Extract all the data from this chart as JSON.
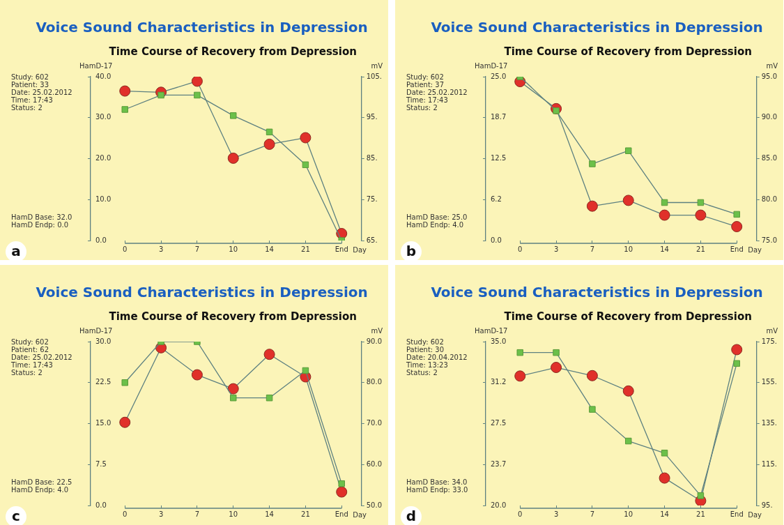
{
  "chart_data": [
    {
      "type": "line",
      "title": "Voice Sound Characteristics in Depression",
      "subtitle": "Time Course of Recovery from Depression",
      "xlabel": "Day",
      "ylabel": "HamD-17",
      "y2label": "mV",
      "categories": [
        "0",
        "3",
        "7",
        "10",
        "14",
        "21",
        "End"
      ],
      "series": [
        {
          "color": "#6cc04a",
          "marker": "square",
          "values": [
            32,
            35.5,
            35.5,
            30.5,
            26.5,
            18.5,
            0
          ]
        },
        {
          "color": "#e0302a",
          "marker": "circle",
          "axis": "y2",
          "values": [
            101.5,
            101.2,
            103.9,
            85.1,
            88.5,
            90.1,
            66.7
          ]
        }
      ],
      "ylim": [
        0,
        40
      ],
      "yticks": [
        {
          "value": 0,
          "label": "0.0"
        },
        {
          "value": 10,
          "label": "10.0"
        },
        {
          "value": 20,
          "label": "20.0"
        },
        {
          "value": 30,
          "label": "30.0"
        },
        {
          "value": 40,
          "label": "40.0"
        }
      ],
      "y2lim": [
        65,
        105
      ],
      "y2ticks": [
        {
          "value": 65,
          "label": "65."
        },
        {
          "value": 75,
          "label": "75."
        },
        {
          "value": 85,
          "label": "85."
        },
        {
          "value": 95,
          "label": "95."
        },
        {
          "value": 105,
          "label": "105."
        }
      ],
      "grid": false,
      "annotations": [
        "Study: 602",
        "Patient: 33",
        "Date: 25.02.2012",
        "Time: 17:43",
        "Status: 2",
        "HamD Base: 32.0",
        "HamD Endp: 0.0",
        "a"
      ]
    },
    {
      "type": "line",
      "title": "Voice Sound Characteristics in Depression",
      "subtitle": "Time Course of Recovery from Depression",
      "xlabel": "Day",
      "ylabel": "HamD-17",
      "y2label": "mV",
      "categories": [
        "0",
        "3",
        "7",
        "10",
        "14",
        "21",
        "End"
      ],
      "series": [
        {
          "color": "#6cc04a",
          "marker": "square",
          "values": [
            25,
            19.8,
            11.7,
            13.7,
            5.8,
            5.8,
            4.0
          ]
        },
        {
          "color": "#e0302a",
          "marker": "circle",
          "axis": "y2",
          "values": [
            94.4,
            91.1,
            79.2,
            79.9,
            78.1,
            78.1,
            76.7
          ]
        }
      ],
      "ylim": [
        0,
        25
      ],
      "yticks": [
        {
          "value": 0,
          "label": "0.0"
        },
        {
          "value": 6.25,
          "label": "6.2"
        },
        {
          "value": 12.5,
          "label": "12.5"
        },
        {
          "value": 18.75,
          "label": "18.7"
        },
        {
          "value": 25,
          "label": "25.0"
        }
      ],
      "y2lim": [
        75,
        95
      ],
      "y2ticks": [
        {
          "value": 75,
          "label": "75.0"
        },
        {
          "value": 80,
          "label": "80.0"
        },
        {
          "value": 85,
          "label": "85.0"
        },
        {
          "value": 90,
          "label": "90.0"
        },
        {
          "value": 95,
          "label": "95.0"
        }
      ],
      "grid": false,
      "annotations": [
        "Study: 602",
        "Patient: 37",
        "Date: 25.02.2012",
        "Time: 17:43",
        "Status: 2",
        "HamD Base: 25.0",
        "HamD Endp: 4.0",
        "b"
      ]
    },
    {
      "type": "line",
      "title": "Voice Sound Characteristics in Depression",
      "subtitle": "Time Course of Recovery from Depression",
      "xlabel": "Day",
      "ylabel": "HamD-17",
      "y2label": "mV",
      "categories": [
        "0",
        "3",
        "7",
        "10",
        "14",
        "21",
        "End"
      ],
      "series": [
        {
          "color": "#6cc04a",
          "marker": "square",
          "values": [
            22.5,
            30,
            30,
            19.7,
            19.7,
            24.7,
            4.0
          ]
        },
        {
          "color": "#e0302a",
          "marker": "circle",
          "axis": "y2",
          "values": [
            70.3,
            88.5,
            81.9,
            78.5,
            86.9,
            81.4,
            53.3
          ]
        }
      ],
      "ylim": [
        0,
        30
      ],
      "yticks": [
        {
          "value": 0,
          "label": "0.0"
        },
        {
          "value": 7.5,
          "label": "7.5"
        },
        {
          "value": 15,
          "label": "15.0"
        },
        {
          "value": 22.5,
          "label": "22.5"
        },
        {
          "value": 30,
          "label": "30.0"
        }
      ],
      "y2lim": [
        50,
        90
      ],
      "y2ticks": [
        {
          "value": 50,
          "label": "50.0"
        },
        {
          "value": 60,
          "label": "60.0"
        },
        {
          "value": 70,
          "label": "70.0"
        },
        {
          "value": 80,
          "label": "80.0"
        },
        {
          "value": 90,
          "label": "90.0"
        }
      ],
      "grid": false,
      "annotations": [
        "Study: 602",
        "Patient: 62",
        "Date: 25.02.2012",
        "Time: 17:43",
        "Status: 2",
        "HamD Base: 22.5",
        "HamD Endp: 4.0",
        "c"
      ]
    },
    {
      "type": "line",
      "title": "Voice Sound Characteristics in Depression",
      "subtitle": "Time Course of Recovery from Depression",
      "xlabel": "Day",
      "ylabel": "HamD-17",
      "y2label": "mV",
      "categories": [
        "0",
        "3",
        "7",
        "10",
        "14",
        "21",
        "End"
      ],
      "series": [
        {
          "color": "#6cc04a",
          "marker": "square",
          "values": [
            34.0,
            34.0,
            28.8,
            25.9,
            24.8,
            20.9,
            33.0
          ]
        },
        {
          "color": "#e0302a",
          "marker": "circle",
          "axis": "y2",
          "values": [
            158.2,
            162.4,
            158.4,
            150.9,
            108.4,
            97.3,
            171.1
          ]
        }
      ],
      "ylim": [
        20,
        35
      ],
      "yticks": [
        {
          "value": 20,
          "label": "20.0"
        },
        {
          "value": 23.75,
          "label": "23.7"
        },
        {
          "value": 27.5,
          "label": "27.5"
        },
        {
          "value": 31.25,
          "label": "31.2"
        },
        {
          "value": 35,
          "label": "35.0"
        }
      ],
      "y2lim": [
        95,
        175
      ],
      "y2ticks": [
        {
          "value": 95,
          "label": "95."
        },
        {
          "value": 115,
          "label": "115."
        },
        {
          "value": 135,
          "label": "135."
        },
        {
          "value": 155,
          "label": "155."
        },
        {
          "value": 175,
          "label": "175."
        }
      ],
      "grid": false,
      "annotations": [
        "Study: 602",
        "Patient: 30",
        "Date: 20.04.2012",
        "Time: 13:23",
        "Status: 2",
        "HamD Base: 34.0",
        "HamD Endp: 33.0",
        "d"
      ]
    }
  ]
}
